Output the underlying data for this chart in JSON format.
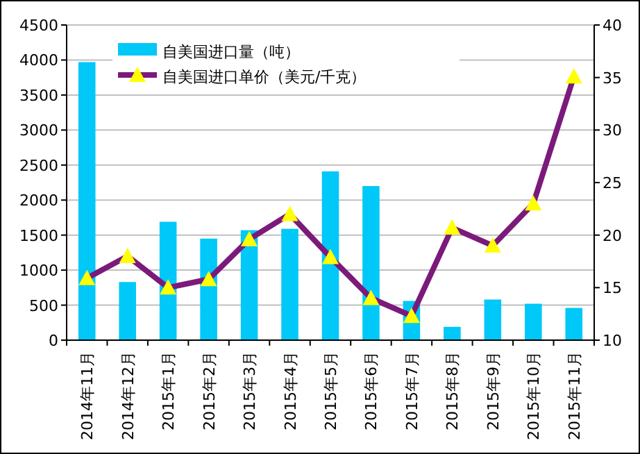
{
  "chart_data": {
    "type": "bar",
    "categories": [
      "2014年11月",
      "2014年12月",
      "2015年1月",
      "2015年2月",
      "2015年3月",
      "2015年4月",
      "2015年5月",
      "2015年6月",
      "2015年7月",
      "2015年8月",
      "2015年9月",
      "2015年10月",
      "2015年11月"
    ],
    "series": [
      {
        "name": "自美国进口量（吨）",
        "color": "#00c8f8",
        "values": [
          3970,
          830,
          1690,
          1450,
          1570,
          1590,
          2410,
          2200,
          560,
          190,
          580,
          520,
          460
        ]
      },
      {
        "name": "自美国进口单价（美元/千克）",
        "type": "line",
        "axis": "y2",
        "color": "#7b1a7b",
        "marker": "triangle",
        "values": [
          15.9,
          18.0,
          15.0,
          15.8,
          19.6,
          22.0,
          17.9,
          14.0,
          12.3,
          20.7,
          19.0,
          23.0,
          35.1
        ]
      }
    ],
    "ylim": [
      0,
      4500
    ],
    "yticks": [
      0,
      500,
      1000,
      1500,
      2000,
      2500,
      3000,
      3500,
      4000,
      4500
    ],
    "y2lim": [
      10,
      40
    ],
    "y2ticks": [
      10,
      15,
      20,
      25,
      30,
      35,
      40
    ],
    "grid": "y",
    "legend": "top left"
  }
}
